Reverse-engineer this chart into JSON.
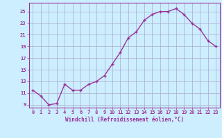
{
  "x": [
    0,
    1,
    2,
    3,
    4,
    5,
    6,
    7,
    8,
    9,
    10,
    11,
    12,
    13,
    14,
    15,
    16,
    17,
    18,
    19,
    20,
    21,
    22,
    23
  ],
  "y": [
    11.5,
    10.5,
    9.0,
    9.2,
    12.5,
    11.5,
    11.5,
    12.5,
    13.0,
    14.0,
    16.0,
    18.0,
    20.5,
    21.5,
    23.5,
    24.5,
    25.0,
    25.0,
    25.5,
    24.5,
    23.0,
    22.0,
    20.0,
    19.0
  ],
  "line_color": "#993399",
  "marker": "+",
  "marker_size": 3,
  "bg_color": "#cceeff",
  "grid_color": "#aaaacc",
  "xlabel": "Windchill (Refroidissement éolien,°C)",
  "xlabel_fontsize": 5.5,
  "tick_fontsize": 5,
  "ylabel_ticks": [
    9,
    11,
    13,
    15,
    17,
    19,
    21,
    23,
    25
  ],
  "xlim": [
    -0.5,
    23.5
  ],
  "ylim": [
    8.5,
    26.5
  ],
  "line_width": 1.0
}
